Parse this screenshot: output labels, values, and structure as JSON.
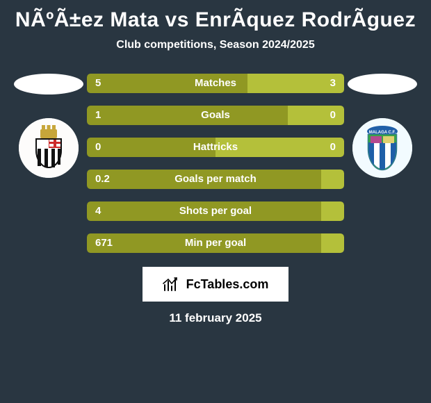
{
  "background_color": "#293641",
  "title": "NÃºÃ±ez Mata vs EnrÃ­quez RodrÃ­guez",
  "subtitle": "Club competitions, Season 2024/2025",
  "left_player_ellipse_color": "#ffffff",
  "right_player_ellipse_color": "#ffffff",
  "left_logo_background": "#fdfcfb",
  "right_logo_background": "#f2fbff",
  "bar": {
    "left_color": "#909823",
    "right_color": "#b4c03a",
    "fontsize": 15,
    "height": 28,
    "gap": 18,
    "radius": 5
  },
  "rows": [
    {
      "label": "Matches",
      "left_val": "5",
      "right_val": "3",
      "left_pct": 62.5,
      "right_pct": 37.5
    },
    {
      "label": "Goals",
      "left_val": "1",
      "right_val": "0",
      "left_pct": 78.0,
      "right_pct": 22.0
    },
    {
      "label": "Hattricks",
      "left_val": "0",
      "right_val": "0",
      "left_pct": 50.0,
      "right_pct": 50.0
    },
    {
      "label": "Goals per match",
      "left_val": "0.2",
      "right_val": "",
      "left_pct": 91.0,
      "right_pct": 9.0
    },
    {
      "label": "Shots per goal",
      "left_val": "4",
      "right_val": "",
      "left_pct": 91.0,
      "right_pct": 9.0
    },
    {
      "label": "Min per goal",
      "left_val": "671",
      "right_val": "",
      "left_pct": 91.0,
      "right_pct": 9.0
    }
  ],
  "footer": {
    "brand": "FcTables.com",
    "box_background": "#ffffff",
    "text_color": "#000000"
  },
  "date": "11 february 2025"
}
